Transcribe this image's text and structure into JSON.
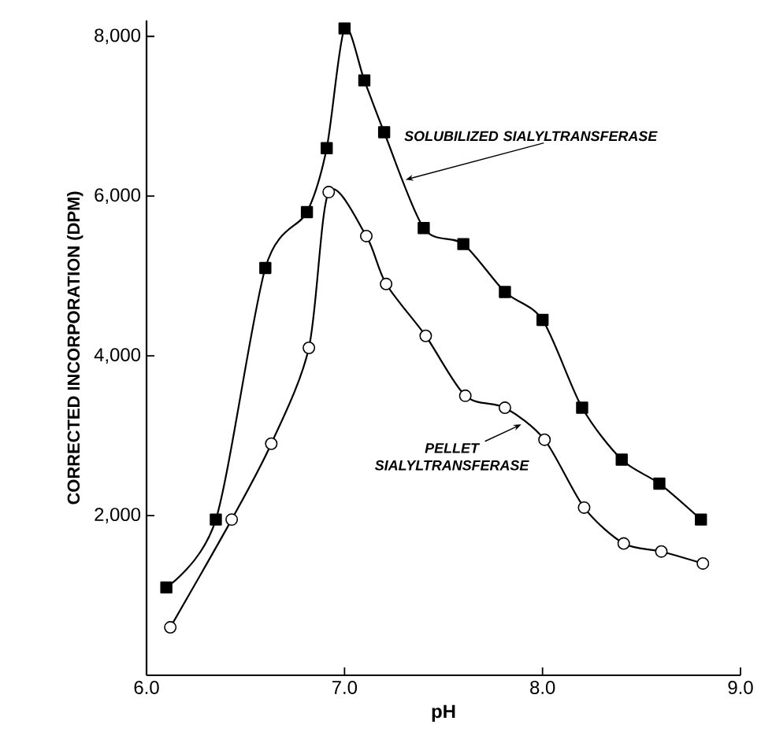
{
  "chart_data": {
    "type": "line",
    "xlabel": "pH",
    "ylabel": "CORRECTED INCORPORATION (DPM)",
    "xlim": [
      6.0,
      9.0
    ],
    "ylim": [
      0,
      8200
    ],
    "xticks": [
      {
        "value": 6.0,
        "label": "6.0"
      },
      {
        "value": 7.0,
        "label": "7.0"
      },
      {
        "value": 8.0,
        "label": "8.0"
      },
      {
        "value": 9.0,
        "label": "9.0"
      }
    ],
    "yticks": [
      {
        "value": 2000,
        "label": "2,000"
      },
      {
        "value": 4000,
        "label": "4,000"
      },
      {
        "value": 6000,
        "label": "6,000"
      },
      {
        "value": 8000,
        "label": "8,000"
      }
    ],
    "grid": false,
    "line_style": "solid",
    "series": [
      {
        "color": "#000000",
        "marker": "square",
        "x": [
          6.1,
          6.35,
          6.6,
          6.81,
          6.91,
          7.0,
          7.1,
          7.2,
          7.4,
          7.6,
          7.81,
          8.0,
          8.2,
          8.4,
          8.59,
          8.8
        ],
        "values": [
          1100,
          1950,
          5100,
          5800,
          6600,
          8100,
          7450,
          6800,
          5600,
          5400,
          4800,
          4450,
          3350,
          2700,
          2400,
          1950
        ]
      },
      {
        "color": "#000000",
        "marker": "circle",
        "x": [
          6.12,
          6.43,
          6.63,
          6.82,
          6.92,
          7.11,
          7.21,
          7.41,
          7.61,
          7.81,
          8.01,
          8.21,
          8.41,
          8.6,
          8.81
        ],
        "values": [
          600,
          1950,
          2900,
          4100,
          6050,
          5500,
          4900,
          4250,
          3500,
          3350,
          2950,
          2100,
          1650,
          1550,
          1400
        ]
      }
    ],
    "annotations": [
      {
        "text": "SOLUBILIZED SIALYLTRANSFERASE",
        "x": 7.3,
        "y": 6200
      },
      {
        "text": "PELLET\nSIALYLTRANSFERASE",
        "x": 7.9,
        "y": 3150
      }
    ]
  }
}
